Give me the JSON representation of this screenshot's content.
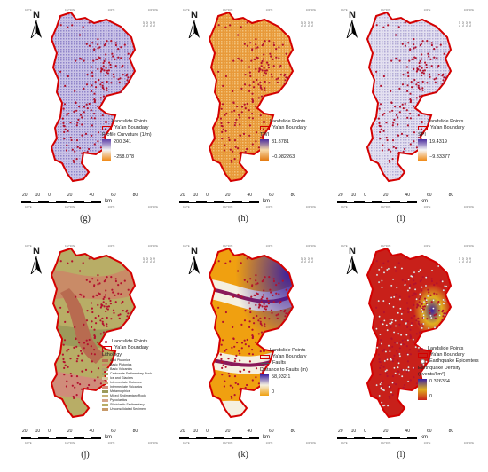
{
  "common": {
    "north_label": "N",
    "landslide_label": "Landslide Points",
    "boundary_label": "Ya'an Boundary",
    "scale_ticks": [
      "20",
      "10",
      "0",
      "20",
      "40",
      "60",
      "80"
    ],
    "scale_unit": "km",
    "lon_ticks": [
      "102°E",
      "102°30'E",
      "103°E",
      "103°30'E"
    ],
    "lat_ticks": [
      "30°N",
      "29°N",
      "29°N",
      "28°N"
    ]
  },
  "colors": {
    "landslide": "#b3122e",
    "boundary": "#d40000"
  },
  "panels": [
    {
      "caption": "(g)",
      "legend_title": "Profile Curvature (1/m)",
      "max": "200.341",
      "min": "−258.078",
      "ramp": [
        "#5e3fa8",
        "#f2f2f2",
        "#f08a16"
      ]
    },
    {
      "caption": "(h)",
      "legend_title": "TWI",
      "max": "31.8781",
      "min": "−0.982263",
      "ramp": [
        "#4b2c9e",
        "#f7d9a6",
        "#e37a10"
      ]
    },
    {
      "caption": "(i)",
      "legend_title": "SPI",
      "max": "19.4319",
      "min": "−9.33377",
      "ramp": [
        "#4b2c9e",
        "#f7f7f7",
        "#f08a16"
      ]
    },
    {
      "caption": "(j)",
      "legend_title": "Lithology",
      "categories": [
        {
          "label": "Acid Plutonics",
          "color": "#b86b50"
        },
        {
          "label": "Basic Plutonics",
          "color": "#c98b67"
        },
        {
          "label": "Basic Volcanics",
          "color": "#b0a070"
        },
        {
          "label": "Carbonate Sedimentary Rock",
          "color": "#a5a268"
        },
        {
          "label": "Ice and Glaciers",
          "color": "#d6c7a1"
        },
        {
          "label": "Intermediate Plutonics",
          "color": "#c9a07a"
        },
        {
          "label": "Intermediate Volcanics",
          "color": "#d08c7a"
        },
        {
          "label": "Metamorphics",
          "color": "#9c9a5a"
        },
        {
          "label": "Mixed Sedimentary Rock",
          "color": "#c7b37a"
        },
        {
          "label": "Pyroclastics",
          "color": "#d5a58a"
        },
        {
          "label": "Siliciclastic Sedimentary",
          "color": "#b8ad66"
        },
        {
          "label": "Unconsolidated Sediment",
          "color": "#c79a6a"
        }
      ]
    },
    {
      "caption": "(k)",
      "faults_label": "Faults",
      "legend_title": "Distance to Faults (m)",
      "max": "58,932.1",
      "min": "0",
      "ramp": [
        "#3a1fa0",
        "#f5f0e0",
        "#f0a010"
      ]
    },
    {
      "caption": "(l)",
      "epicenter_label": "Earthquake Epicenters",
      "legend_title": "Earthquake Density (events/km²)",
      "max": "0.326364",
      "min": "0",
      "ramp": [
        "#3a1fa0",
        "#e0b020",
        "#c8201a"
      ]
    }
  ]
}
